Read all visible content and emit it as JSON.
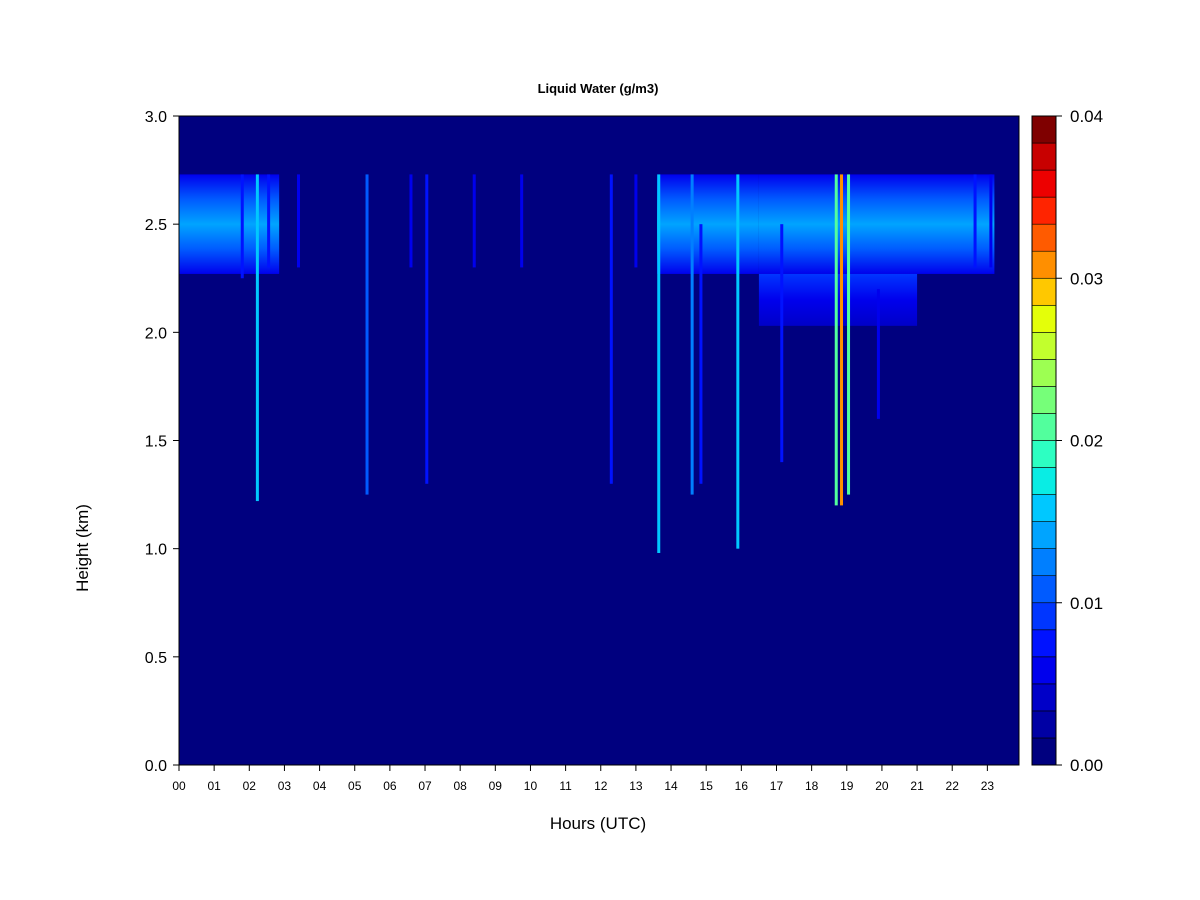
{
  "chart_data": {
    "type": "heatmap",
    "title": "Liquid Water (g/m3)",
    "xlabel": "Hours (UTC)",
    "ylabel": "Height (km)",
    "xlim": [
      0,
      23.9
    ],
    "ylim": [
      0,
      3.0
    ],
    "x_ticks": [
      0,
      1,
      2,
      3,
      4,
      5,
      6,
      7,
      8,
      9,
      10,
      11,
      12,
      13,
      14,
      15,
      16,
      17,
      18,
      19,
      20,
      21,
      22,
      23
    ],
    "x_tick_labels": [
      "00",
      "01",
      "02",
      "03",
      "04",
      "05",
      "06",
      "07",
      "08",
      "09",
      "10",
      "11",
      "12",
      "13",
      "14",
      "15",
      "16",
      "17",
      "18",
      "19",
      "20",
      "21",
      "22",
      "23"
    ],
    "y_ticks": [
      0.0,
      0.5,
      1.0,
      1.5,
      2.0,
      2.5,
      3.0
    ],
    "y_tick_labels": [
      "0.0",
      "0.5",
      "1.0",
      "1.5",
      "2.0",
      "2.5",
      "3.0"
    ],
    "colorbar": {
      "min": 0.0,
      "max": 0.04,
      "levels": 20,
      "tick_values": [
        0.0,
        0.01,
        0.02,
        0.03,
        0.04
      ],
      "tick_labels": [
        "0.00",
        "0.01",
        "0.02",
        "0.03",
        "0.04"
      ],
      "colors": [
        "#00007F",
        "#0000A4",
        "#0000C8",
        "#0000ED",
        "#0012FF",
        "#0036FF",
        "#005BFF",
        "#007FFF",
        "#00A4FF",
        "#00C8FF",
        "#09EDE4",
        "#2DFFC2",
        "#52FF9D",
        "#76FF79",
        "#9DFF52",
        "#C2FF2D",
        "#E4FF09",
        "#FFC800",
        "#FF8F00",
        "#FF5B00"
      ],
      "colors_upper": [
        "#FF2400",
        "#ED0000",
        "#C80000",
        "#7F0000"
      ]
    },
    "background_value": 0.0,
    "cloud_layers": [
      {
        "x_start": 0.0,
        "x_end": 2.85,
        "y_bottom": 2.27,
        "y_top": 2.73,
        "peak_value": 0.009
      },
      {
        "x_start": 13.6,
        "x_end": 16.5,
        "y_bottom": 2.27,
        "y_top": 2.73,
        "peak_value": 0.012
      },
      {
        "x_start": 16.5,
        "x_end": 23.2,
        "y_bottom": 2.27,
        "y_top": 2.73,
        "peak_value": 0.013
      },
      {
        "x_start": 16.5,
        "x_end": 21.0,
        "y_bottom": 2.03,
        "y_top": 2.27,
        "peak_value": 0.007
      }
    ],
    "streaks": [
      {
        "x": 1.8,
        "y_bottom": 2.25,
        "y_top": 2.73,
        "value": 0.008
      },
      {
        "x": 2.23,
        "y_bottom": 1.22,
        "y_top": 2.73,
        "value": 0.016
      },
      {
        "x": 2.55,
        "y_bottom": 2.3,
        "y_top": 2.73,
        "value": 0.007
      },
      {
        "x": 3.4,
        "y_bottom": 2.3,
        "y_top": 2.73,
        "value": 0.006
      },
      {
        "x": 5.35,
        "y_bottom": 1.25,
        "y_top": 2.73,
        "value": 0.011
      },
      {
        "x": 6.6,
        "y_bottom": 2.3,
        "y_top": 2.73,
        "value": 0.005
      },
      {
        "x": 7.05,
        "y_bottom": 1.3,
        "y_top": 2.73,
        "value": 0.008
      },
      {
        "x": 8.4,
        "y_bottom": 2.3,
        "y_top": 2.73,
        "value": 0.005
      },
      {
        "x": 9.75,
        "y_bottom": 2.3,
        "y_top": 2.73,
        "value": 0.005
      },
      {
        "x": 12.3,
        "y_bottom": 1.3,
        "y_top": 2.73,
        "value": 0.008
      },
      {
        "x": 13.0,
        "y_bottom": 2.3,
        "y_top": 2.73,
        "value": 0.005
      },
      {
        "x": 13.65,
        "y_bottom": 0.98,
        "y_top": 2.73,
        "value": 0.015
      },
      {
        "x": 14.6,
        "y_bottom": 1.25,
        "y_top": 2.73,
        "value": 0.013
      },
      {
        "x": 14.85,
        "y_bottom": 1.3,
        "y_top": 2.5,
        "value": 0.008
      },
      {
        "x": 15.9,
        "y_bottom": 1.0,
        "y_top": 2.73,
        "value": 0.016
      },
      {
        "x": 17.15,
        "y_bottom": 1.4,
        "y_top": 2.5,
        "value": 0.007
      },
      {
        "x": 18.7,
        "y_bottom": 1.2,
        "y_top": 2.73,
        "value": 0.02
      },
      {
        "x": 18.85,
        "y_bottom": 1.2,
        "y_top": 2.73,
        "value": 0.03
      },
      {
        "x": 19.05,
        "y_bottom": 1.25,
        "y_top": 2.73,
        "value": 0.02
      },
      {
        "x": 19.9,
        "y_bottom": 1.6,
        "y_top": 2.2,
        "value": 0.006
      },
      {
        "x": 22.65,
        "y_bottom": 2.3,
        "y_top": 2.73,
        "value": 0.008
      },
      {
        "x": 23.1,
        "y_bottom": 2.3,
        "y_top": 2.73,
        "value": 0.006
      }
    ]
  }
}
